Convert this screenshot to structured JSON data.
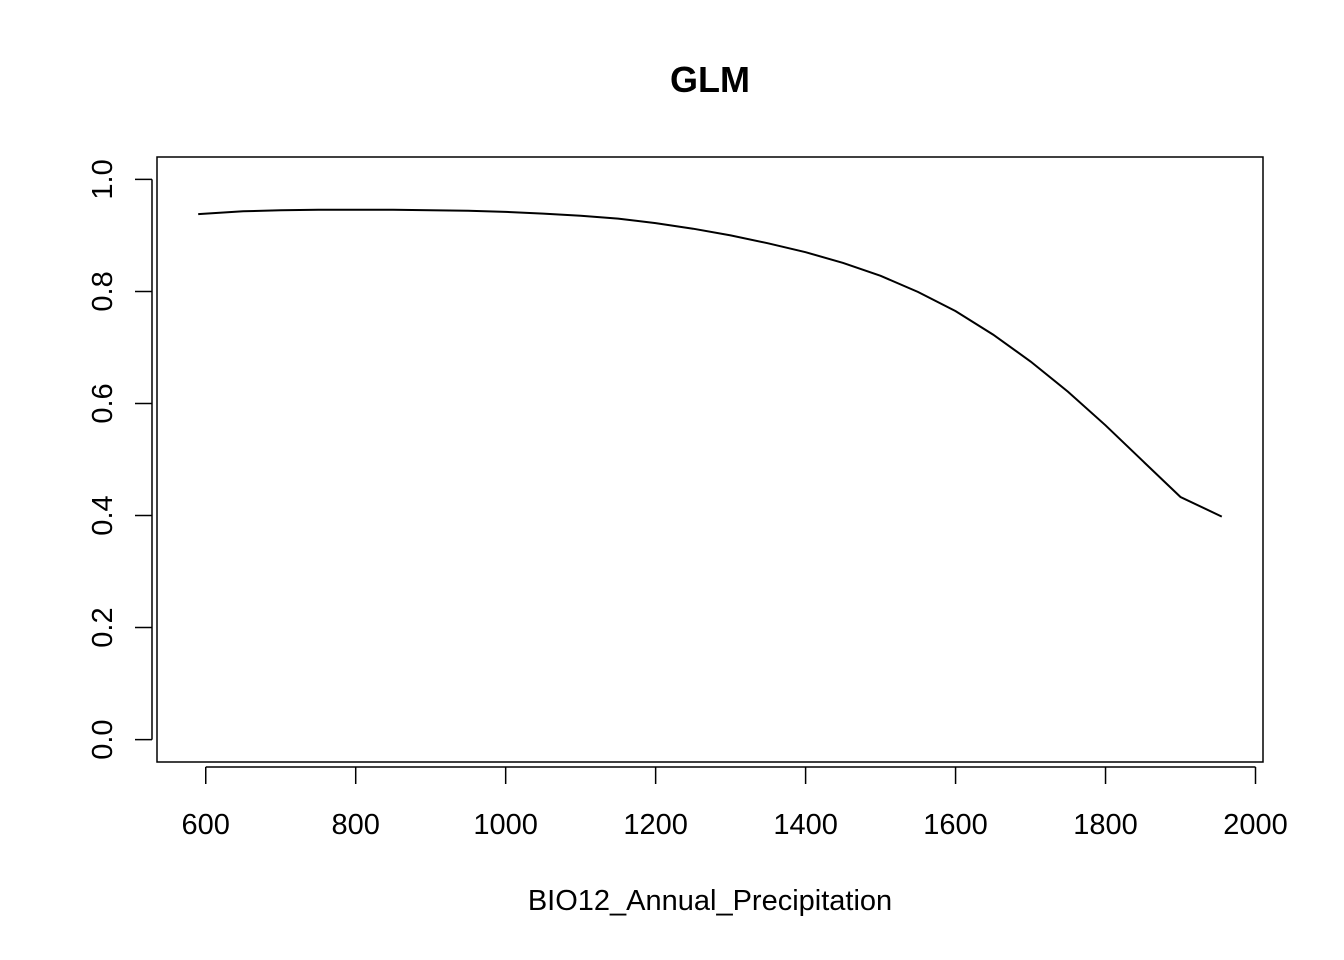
{
  "chart_data": {
    "type": "line",
    "title": "GLM",
    "xlabel": "BIO12_Annual_Precipitation",
    "ylabel": "",
    "xlim": [
      535,
      2010
    ],
    "ylim": [
      -0.04,
      1.04
    ],
    "x_ticks": [
      600,
      800,
      1000,
      1200,
      1400,
      1600,
      1800,
      2000
    ],
    "x_tick_labels": [
      "600",
      "800",
      "1000",
      "1200",
      "1400",
      "1600",
      "1800",
      "2000"
    ],
    "y_ticks": [
      0.0,
      0.2,
      0.4,
      0.6,
      0.8,
      1.0
    ],
    "y_tick_labels": [
      "0.0",
      "0.2",
      "0.4",
      "0.6",
      "0.8",
      "1.0"
    ],
    "grid": false,
    "legend": "none",
    "series": [
      {
        "x": [
          590,
          650,
          700,
          750,
          800,
          850,
          900,
          950,
          1000,
          1050,
          1100,
          1150,
          1200,
          1250,
          1300,
          1350,
          1400,
          1450,
          1500,
          1550,
          1600,
          1650,
          1700,
          1750,
          1800,
          1850,
          1900,
          1955
        ],
        "values": [
          0.938,
          0.943,
          0.945,
          0.946,
          0.946,
          0.946,
          0.945,
          0.944,
          0.942,
          0.939,
          0.935,
          0.93,
          0.922,
          0.912,
          0.9,
          0.886,
          0.87,
          0.851,
          0.828,
          0.799,
          0.765,
          0.723,
          0.675,
          0.621,
          0.561,
          0.497,
          0.433,
          0.398
        ]
      }
    ],
    "color": "#000000"
  }
}
